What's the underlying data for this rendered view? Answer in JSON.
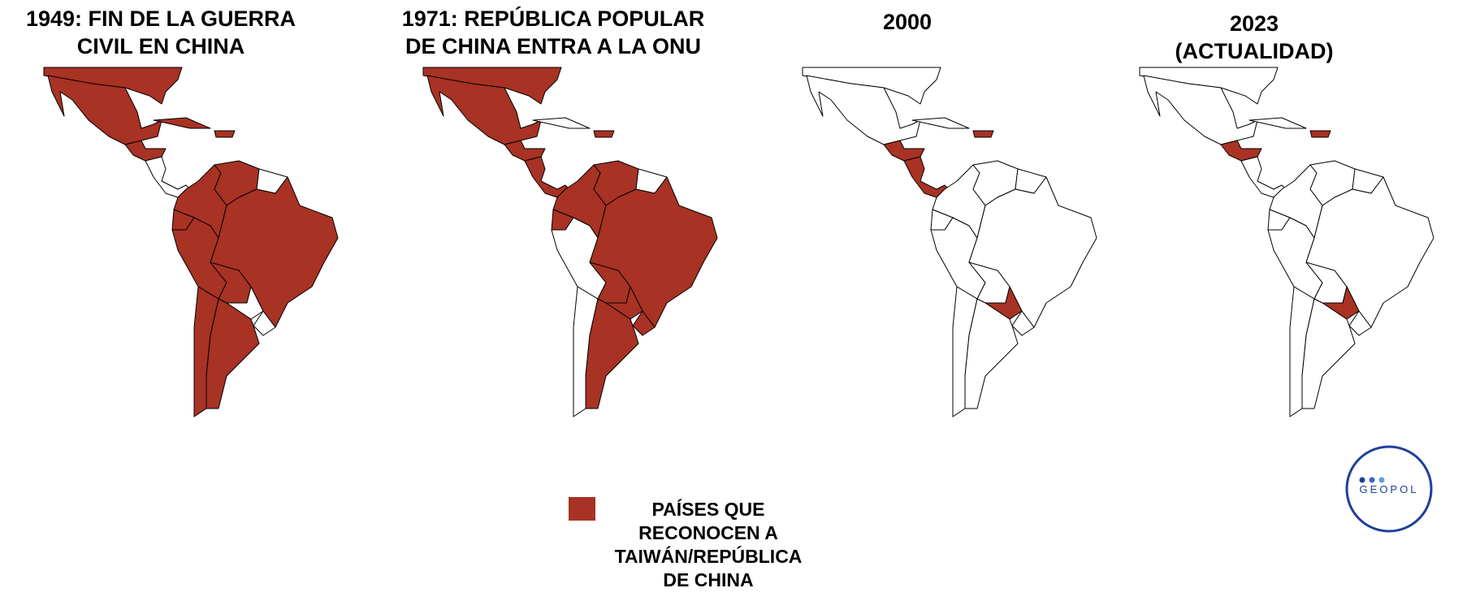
{
  "panels": [
    {
      "title_lines": [
        "1949: FIN DE LA GUERRA",
        "CIVIL EN CHINA"
      ]
    },
    {
      "title_lines": [
        "1971: REPÚBLICA POPULAR",
        "DE CHINA ENTRA A LA ONU"
      ]
    },
    {
      "title_lines": [
        "2000"
      ]
    },
    {
      "title_lines": [
        "2023",
        "(ACTUALIDAD)"
      ]
    }
  ],
  "legend": {
    "lines": [
      "PAÍSES QUE",
      "RECONOCEN A",
      "TAIWÁN/REPÚBLICA",
      "DE CHINA"
    ]
  },
  "logo": {
    "text": "GEOPOL"
  }
}
